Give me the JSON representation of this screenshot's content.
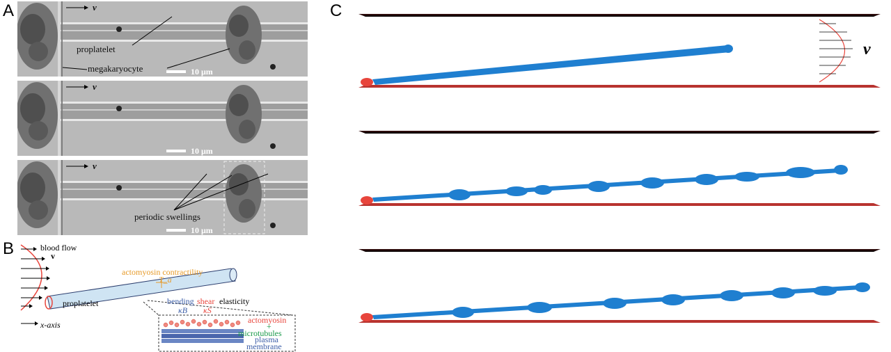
{
  "panels": {
    "a": "A",
    "b": "B",
    "c": "C"
  },
  "panel_a": {
    "velocity_label": "v",
    "scale_bar": "10 μm",
    "frame1": {
      "proplatelet": "proplatelet",
      "megakaryocyte": "megakaryocyte"
    },
    "frame3": {
      "periodic_swellings": "periodic swellings"
    }
  },
  "panel_b": {
    "blood_flow": "blood flow",
    "v": "v",
    "actomyosin_contractility": "actomyosin contractility",
    "t_a": "T_a",
    "bending": "bending",
    "kappa_b": "κB",
    "shear": "shear",
    "elasticity": "elasticity",
    "kappa_s": "κS",
    "proplatelet": "proplatelet",
    "x_axis": "x-axis",
    "actomyosin": "actomyosin",
    "plus": "+",
    "microtubules": "microtubules",
    "plasma": "plasma",
    "membrane": "membrane"
  },
  "panel_c": {
    "v": "v"
  },
  "colors": {
    "tube_blue": "#1f7fd0",
    "plate_red": "#b8332f",
    "actomyosin": "#e8453c",
    "microtubules": "#1a9a4a",
    "plasma_membrane": "#3d5fa8",
    "contractility": "#e69a28"
  }
}
